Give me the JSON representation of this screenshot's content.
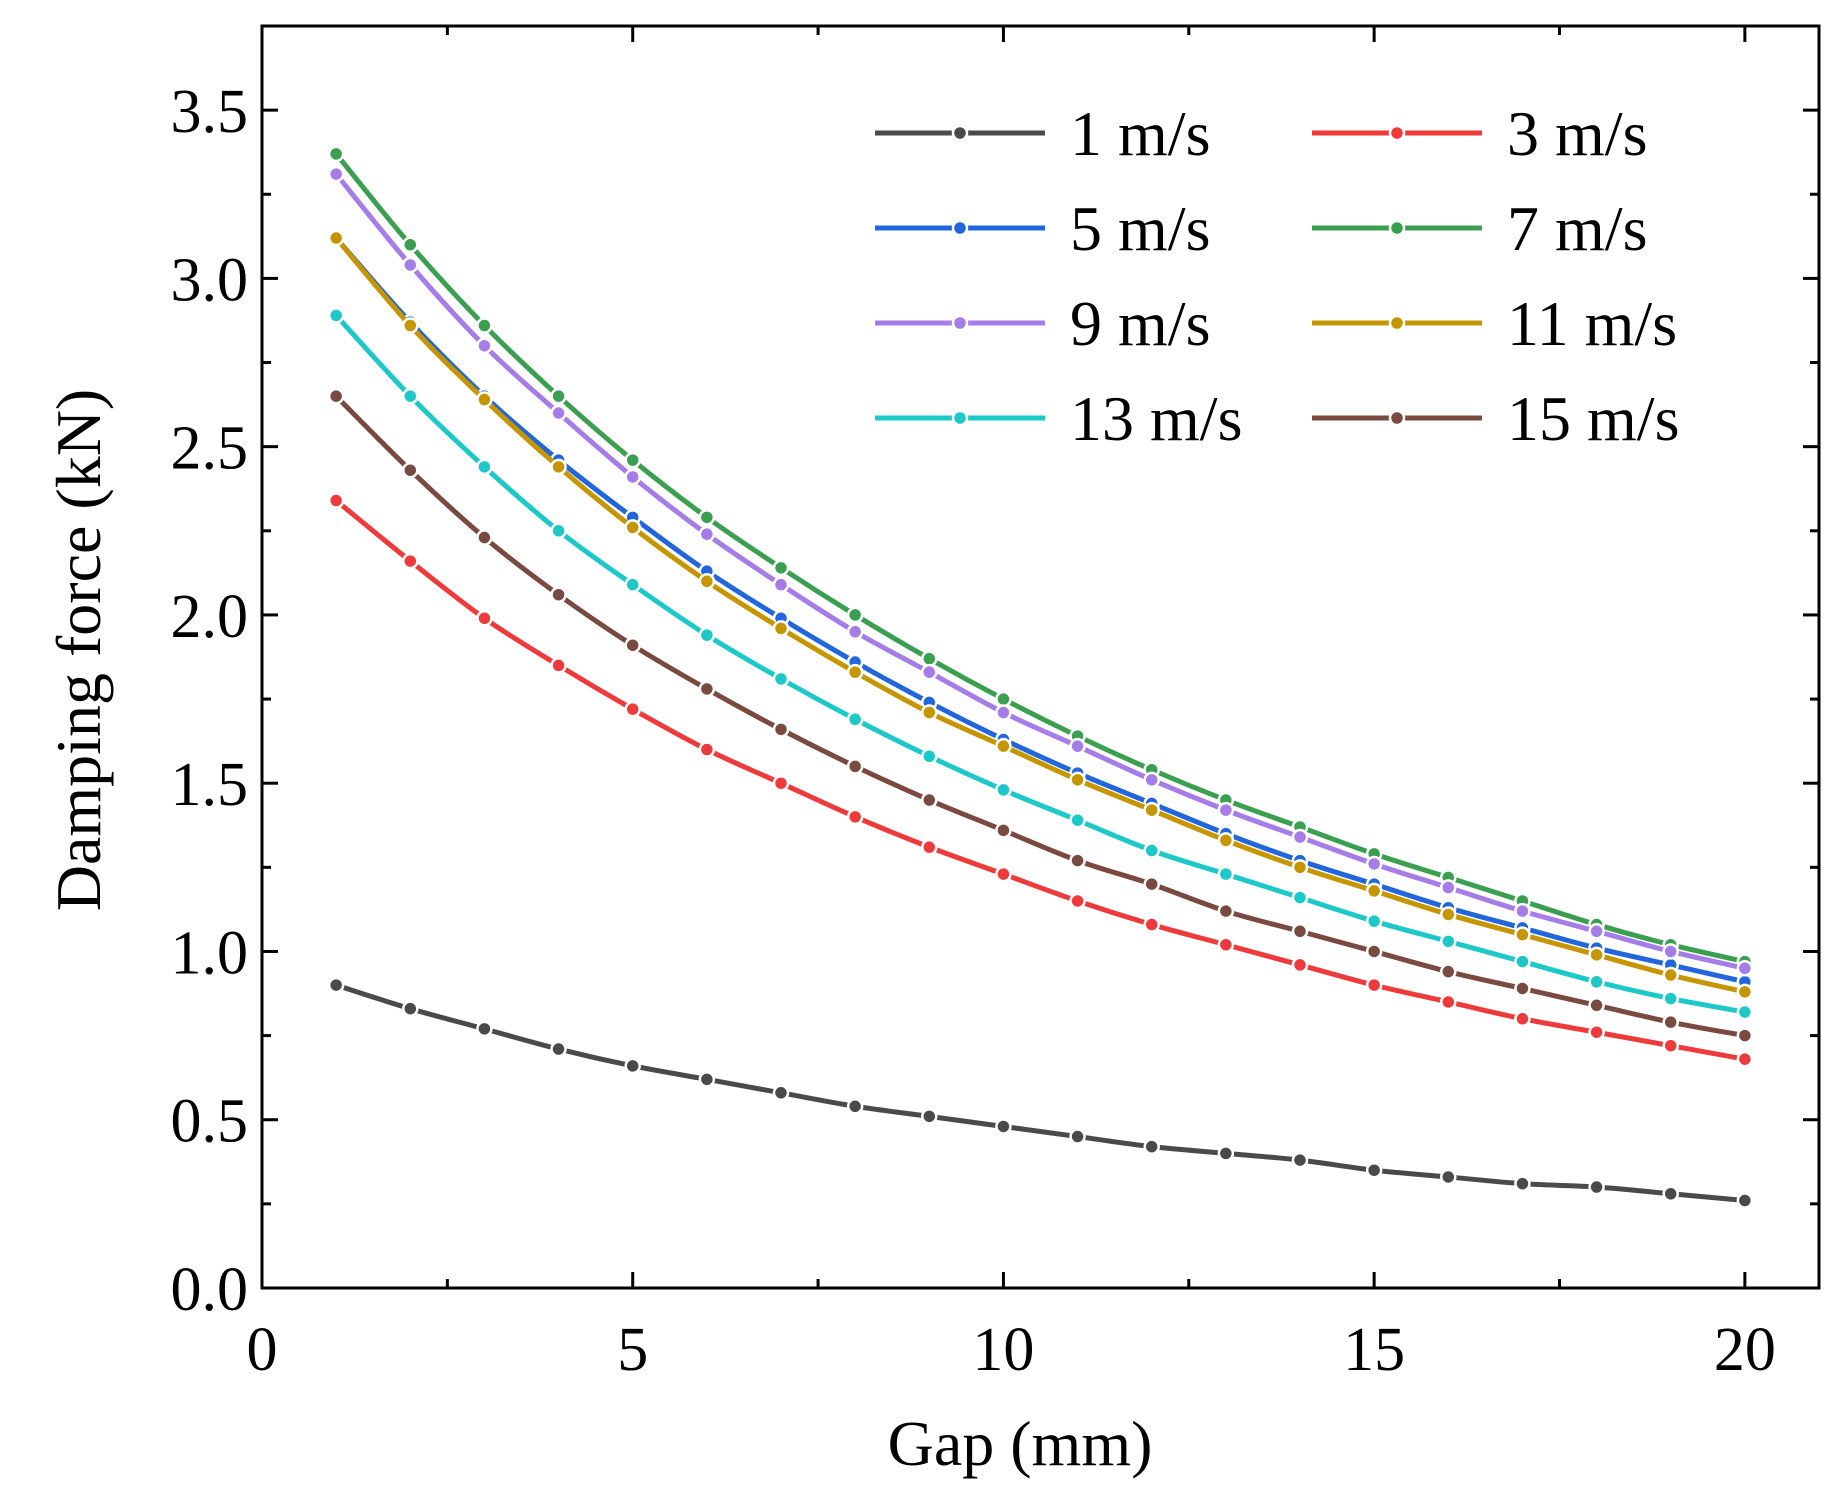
{
  "chart_data": {
    "type": "line",
    "title": "",
    "xlabel": "Gap (mm)",
    "ylabel": "Damping force (kN)",
    "xlim": [
      0,
      21
    ],
    "ylim": [
      0,
      3.75
    ],
    "xticks": [
      0,
      5,
      10,
      15,
      20
    ],
    "xtick_labels": [
      "0",
      "5",
      "10",
      "15",
      "20"
    ],
    "yticks": [
      0.0,
      0.5,
      1.0,
      1.5,
      2.0,
      2.5,
      3.0,
      3.5
    ],
    "ytick_labels": [
      "0.0",
      "0.5",
      "1.0",
      "1.5",
      "2.0",
      "2.5",
      "3.0",
      "3.5"
    ],
    "grid": false,
    "legend_position": "top-right",
    "x": [
      1,
      2,
      3,
      4,
      5,
      6,
      7,
      8,
      9,
      10,
      11,
      12,
      13,
      14,
      15,
      16,
      17,
      18,
      19,
      20
    ],
    "series": [
      {
        "name": "1 m/s",
        "color": "#4a4a4a",
        "values": [
          0.9,
          0.83,
          0.77,
          0.71,
          0.66,
          0.62,
          0.58,
          0.54,
          0.51,
          0.48,
          0.45,
          0.42,
          0.4,
          0.38,
          0.35,
          0.33,
          0.31,
          0.3,
          0.28,
          0.26
        ]
      },
      {
        "name": "3 m/s",
        "color": "#ee3a3a",
        "values": [
          2.34,
          2.16,
          1.99,
          1.85,
          1.72,
          1.6,
          1.5,
          1.4,
          1.31,
          1.23,
          1.15,
          1.08,
          1.02,
          0.96,
          0.9,
          0.85,
          0.8,
          0.76,
          0.72,
          0.68
        ]
      },
      {
        "name": "5 m/s",
        "color": "#2266dd",
        "values": [
          3.12,
          2.87,
          2.65,
          2.46,
          2.29,
          2.13,
          1.99,
          1.86,
          1.74,
          1.63,
          1.53,
          1.44,
          1.35,
          1.27,
          1.2,
          1.13,
          1.07,
          1.01,
          0.96,
          0.91
        ]
      },
      {
        "name": "7 m/s",
        "color": "#3aa050",
        "values": [
          3.37,
          3.1,
          2.86,
          2.65,
          2.46,
          2.29,
          2.14,
          2.0,
          1.87,
          1.75,
          1.64,
          1.54,
          1.45,
          1.37,
          1.29,
          1.22,
          1.15,
          1.08,
          1.02,
          0.97
        ]
      },
      {
        "name": "9 m/s",
        "color": "#a67ce8",
        "values": [
          3.31,
          3.04,
          2.8,
          2.6,
          2.41,
          2.24,
          2.09,
          1.95,
          1.83,
          1.71,
          1.61,
          1.51,
          1.42,
          1.34,
          1.26,
          1.19,
          1.12,
          1.06,
          1.0,
          0.95
        ]
      },
      {
        "name": "11 m/s",
        "color": "#c59600",
        "values": [
          3.12,
          2.86,
          2.64,
          2.44,
          2.26,
          2.1,
          1.96,
          1.83,
          1.71,
          1.61,
          1.51,
          1.42,
          1.33,
          1.25,
          1.18,
          1.11,
          1.05,
          0.99,
          0.93,
          0.88
        ]
      },
      {
        "name": "13 m/s",
        "color": "#1dc8c8",
        "values": [
          2.89,
          2.65,
          2.44,
          2.25,
          2.09,
          1.94,
          1.81,
          1.69,
          1.58,
          1.48,
          1.39,
          1.3,
          1.23,
          1.16,
          1.09,
          1.03,
          0.97,
          0.91,
          0.86,
          0.82
        ]
      },
      {
        "name": "15 m/s",
        "color": "#7a4a40",
        "values": [
          2.65,
          2.43,
          2.23,
          2.06,
          1.91,
          1.78,
          1.66,
          1.55,
          1.45,
          1.36,
          1.27,
          1.2,
          1.12,
          1.06,
          1.0,
          0.94,
          0.89,
          0.84,
          0.79,
          0.75
        ]
      }
    ]
  }
}
